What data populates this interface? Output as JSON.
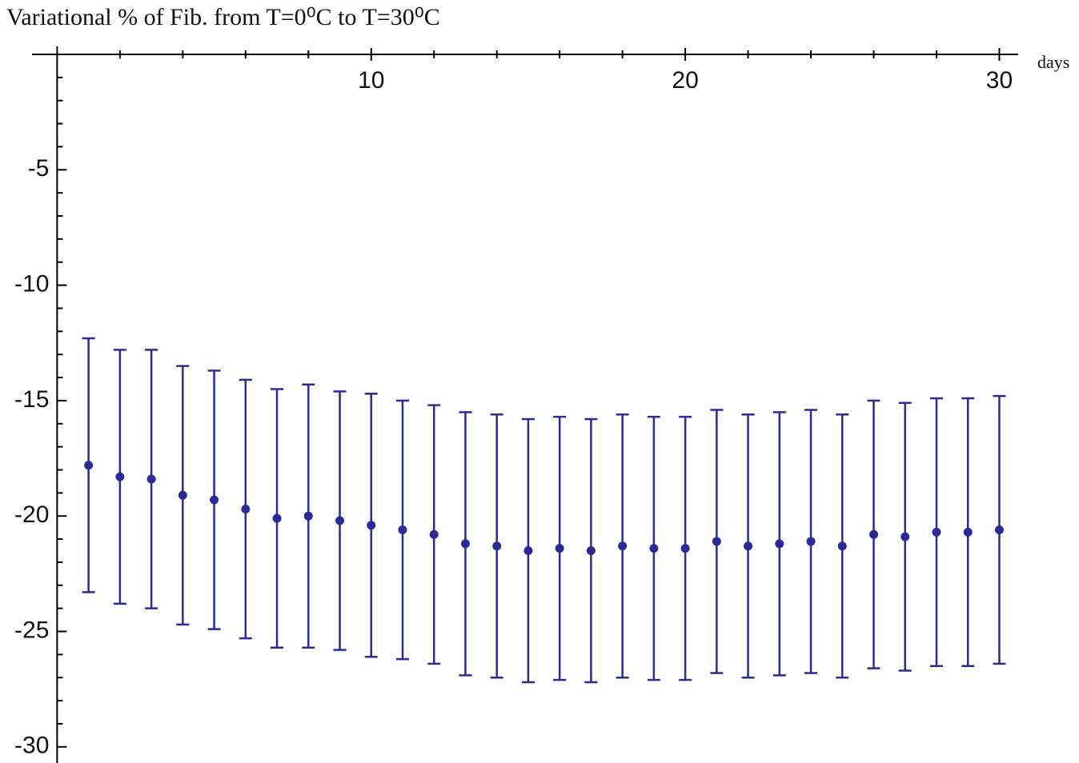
{
  "chart_data": {
    "type": "errorbar",
    "title": "Variational %  of Fib. from T=0⁰C to T=30⁰C",
    "x_label": "days",
    "x": [
      1,
      2,
      3,
      4,
      5,
      6,
      7,
      8,
      9,
      10,
      11,
      12,
      13,
      14,
      15,
      16,
      17,
      18,
      19,
      20,
      21,
      22,
      23,
      24,
      25,
      26,
      27,
      28,
      29,
      30
    ],
    "values": [
      -17.8,
      -18.3,
      -18.4,
      -19.1,
      -19.3,
      -19.7,
      -20.1,
      -20.0,
      -20.2,
      -20.4,
      -20.6,
      -20.8,
      -21.2,
      -21.3,
      -21.5,
      -21.4,
      -21.5,
      -21.3,
      -21.4,
      -21.4,
      -21.1,
      -21.3,
      -21.2,
      -21.1,
      -21.3,
      -20.8,
      -20.9,
      -20.7,
      -20.7,
      -20.6
    ],
    "errors": [
      5.5,
      5.5,
      5.6,
      5.6,
      5.6,
      5.6,
      5.6,
      5.7,
      5.6,
      5.7,
      5.6,
      5.6,
      5.7,
      5.7,
      5.7,
      5.7,
      5.7,
      5.7,
      5.7,
      5.7,
      5.7,
      5.7,
      5.7,
      5.7,
      5.7,
      5.8,
      5.8,
      5.8,
      5.8,
      5.8
    ],
    "color": "#2b2b96",
    "xlim": [
      -0.8,
      30.6
    ],
    "ylim": [
      -30.7,
      0
    ],
    "xticks": [
      10,
      20,
      30
    ],
    "xminorticks": [
      2,
      4,
      6,
      8,
      12,
      14,
      16,
      18,
      22,
      24,
      26,
      28
    ],
    "yticks": [
      -5,
      -10,
      -15,
      -20,
      -25,
      -30
    ],
    "yminorticks": [
      -1,
      -2,
      -3,
      -4,
      -6,
      -7,
      -8,
      -9,
      -11,
      -12,
      -13,
      -14,
      -16,
      -17,
      -18,
      -19,
      -21,
      -22,
      -23,
      -24,
      -26,
      -27,
      -28,
      -29
    ]
  }
}
